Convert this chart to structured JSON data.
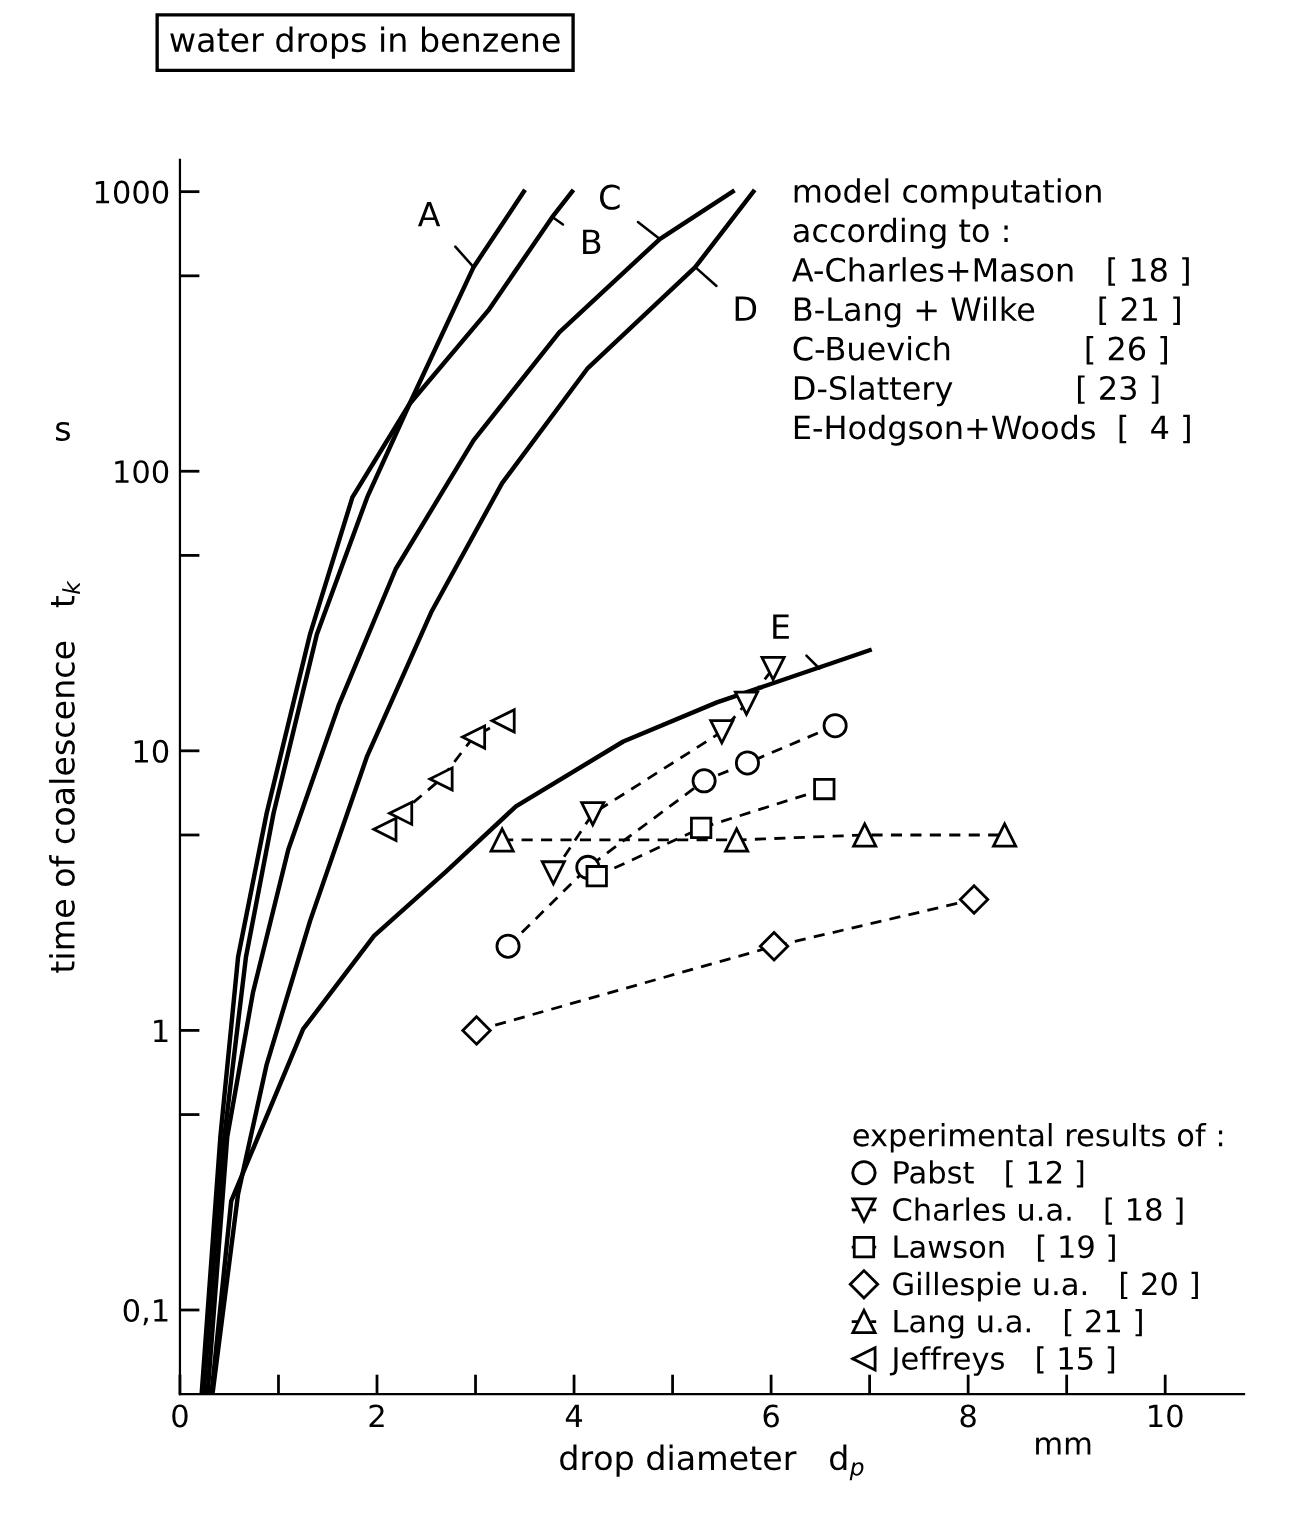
{
  "chart_data": {
    "type": "line",
    "title": "water drops in benzene",
    "xlabel": "drop diameter   d$_{p}$",
    "ylabel": "time of coalescence   t$_{k}$",
    "log": "y",
    "xlim": [
      0,
      10.8
    ],
    "ylim": [
      0.05,
      1300
    ],
    "xticks": [
      0,
      {
        "value": 1,
        "label": null
      },
      2,
      {
        "value": 3,
        "label": null
      },
      4,
      {
        "value": 5,
        "label": null
      },
      6,
      {
        "value": 7,
        "label": null
      },
      8,
      {
        "value": 9,
        "label": null
      },
      10
    ],
    "yticks": [
      1000,
      {
        "value": 500,
        "label": null
      },
      100,
      {
        "value": 50,
        "label": null
      },
      10,
      {
        "value": 5,
        "label": null
      },
      1,
      {
        "value": 0.5,
        "label": null
      },
      {
        "value": 0.1,
        "label": "0,1"
      }
    ],
    "grid": false,
    "legend": "bottom right",
    "legend_title": "experimental results of :",
    "series": [
      {
        "color": "#000000",
        "line_style": "solid",
        "marker": "none",
        "x": [
          0.24,
          0.38,
          0.45,
          0.67,
          0.95,
          1.39,
          1.9,
          2.33,
          2.98,
          3.49
        ],
        "values": [
          0.05,
          0.218,
          0.416,
          1.83,
          5.98,
          26.1,
          80.6,
          174,
          537,
          1000
        ]
      },
      {
        "color": "#000000",
        "line_style": "solid",
        "marker": "none",
        "x": [
          0.22,
          0.41,
          0.59,
          0.88,
          1.32,
          1.75,
          2.33,
          3.13,
          3.78,
          3.98
        ],
        "values": [
          0.05,
          0.416,
          1.83,
          5.98,
          26.1,
          80.6,
          174,
          376,
          812,
          1000
        ]
      },
      {
        "color": "#000000",
        "line_style": "solid",
        "marker": "none",
        "x": [
          0.28,
          0.48,
          0.74,
          1.1,
          1.61,
          2.19,
          2.98,
          3.85,
          4.87,
          5.61
        ],
        "values": [
          0.05,
          0.416,
          1.36,
          4.44,
          14.5,
          44.7,
          129,
          314,
          677,
          1000
        ]
      },
      {
        "color": "#000000",
        "line_style": "solid",
        "marker": "none",
        "x": [
          0.33,
          0.59,
          0.88,
          1.32,
          1.9,
          2.55,
          3.27,
          4.14,
          5.23,
          5.82
        ],
        "values": [
          0.05,
          0.26,
          0.755,
          2.46,
          9.58,
          31.3,
          90.7,
          234,
          537,
          1000
        ]
      },
      {
        "color": "#000000",
        "line_style": "solid",
        "marker": "none",
        "x": [
          0.32,
          0.52,
          1.25,
          1.97,
          2.7,
          3.41,
          4.5,
          5.45,
          7.0
        ],
        "values": [
          0.05,
          0.245,
          1.01,
          2.18,
          3.7,
          6.33,
          10.8,
          14.9,
          22.9
        ]
      },
      {
        "name": "Pabst   [ 12 ]",
        "color": "#000000",
        "line_style": "dashed",
        "marker": "circle",
        "x": [
          3.33,
          4.14,
          5.32,
          5.76,
          6.65
        ],
        "values": [
          2.0,
          3.83,
          7.81,
          9.05,
          12.3
        ]
      },
      {
        "name": "Charles u.a.   [ 18 ]",
        "color": "#000000",
        "line_style": "dashed",
        "marker": "triangle_down",
        "x": [
          3.79,
          4.19,
          5.5,
          5.75,
          6.02
        ],
        "values": [
          3.66,
          5.96,
          11.7,
          14.8,
          19.7
        ]
      },
      {
        "name": "Lawson   [ 19 ]",
        "color": "#000000",
        "line_style": "dashed",
        "marker": "square",
        "x": [
          4.23,
          5.29,
          6.54
        ],
        "values": [
          3.56,
          5.3,
          7.3
        ]
      },
      {
        "name": "Gillespie u.a.   [ 20 ]",
        "color": "#000000",
        "line_style": "dashed",
        "marker": "diamond",
        "x": [
          3.01,
          6.03,
          8.06
        ],
        "values": [
          1.0,
          2.0,
          2.94
        ]
      },
      {
        "name": "Lang u.a.   [ 21 ]",
        "color": "#000000",
        "line_style": "dashed",
        "marker": "triangle",
        "x": [
          3.27,
          5.65,
          6.95,
          8.37
        ],
        "values": [
          4.8,
          4.8,
          5.0,
          5.0
        ]
      },
      {
        "name": "Jeffreys   [ 15 ]",
        "color": "#000000",
        "line_style": "dashed",
        "marker": "triangle_left",
        "x": [
          2.08,
          2.24,
          2.65,
          2.98,
          3.28
        ],
        "values": [
          5.24,
          5.98,
          7.93,
          11.2,
          12.8
        ]
      }
    ],
    "annotations": [
      {
        "text": "A",
        "x": 2.98,
        "y": 537
      },
      {
        "text": "B",
        "x": 3.78,
        "y": 812
      },
      {
        "text": "C",
        "x": 4.87,
        "y": 677
      },
      {
        "text": "D",
        "x": 5.23,
        "y": 537
      },
      {
        "text": "E",
        "x": 6.49,
        "y": 19.7
      },
      "model computation\naccording to :\nA-Charles+Mason   [ 18 ]\nB-Lang + Wilke      [ 21 ]\nC-Buevich             [ 26 ]\nD-Slattery            [ 23 ]\nE-Hodgson+Woods  [  4 ]",
      "s",
      "mm"
    ]
  }
}
